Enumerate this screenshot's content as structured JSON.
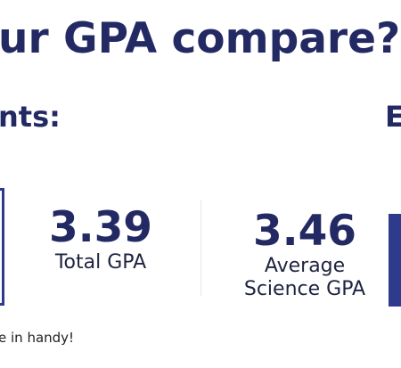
{
  "header": {
    "headline": "ur GPA compare?",
    "subhead_left": "nts:",
    "subhead_right": "E"
  },
  "stats": [
    {
      "value": "3.39",
      "label_line1": "Total GPA",
      "label_line2": ""
    },
    {
      "value": "3.46",
      "label_line1": "Average",
      "label_line2": "Science GPA"
    }
  ],
  "footer": {
    "note": "e in handy!"
  },
  "colors": {
    "heading": "#232a63",
    "accent_bar": "#2e3a8c",
    "divider": "#e6e6ea"
  }
}
